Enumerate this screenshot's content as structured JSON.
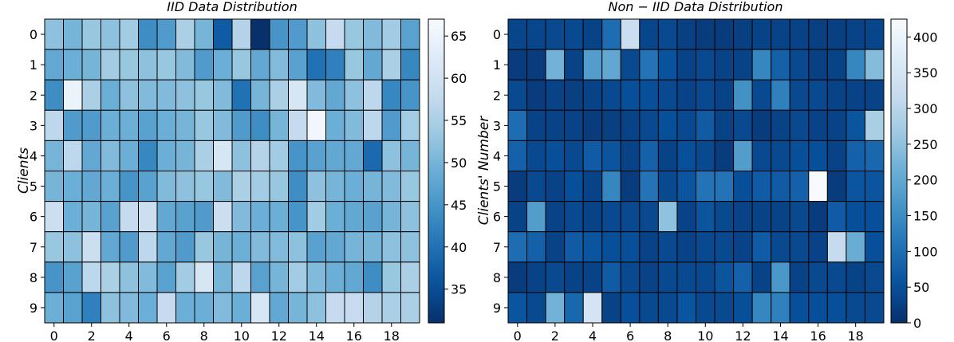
{
  "chart_data": [
    {
      "type": "heatmap",
      "title": "IID Data Distribution",
      "xlabel": "",
      "ylabel": "Clients",
      "colormap": "Blues_r",
      "rows": [
        "0",
        "1",
        "2",
        "3",
        "4",
        "5",
        "6",
        "7",
        "8",
        "9"
      ],
      "columns": [
        "0",
        "1",
        "2",
        "3",
        "4",
        "5",
        "6",
        "7",
        "8",
        "9",
        "10",
        "11",
        "12",
        "13",
        "14",
        "15",
        "16",
        "17",
        "18",
        "19"
      ],
      "x_tick_labels": [
        "0",
        "2",
        "4",
        "6",
        "8",
        "10",
        "12",
        "14",
        "16",
        "18"
      ],
      "y_tick_labels": [
        "0",
        "1",
        "2",
        "3",
        "4",
        "5",
        "6",
        "7",
        "8",
        "9"
      ],
      "colorbar": {
        "min": 31,
        "max": 67,
        "ticks": [
          35,
          40,
          45,
          50,
          55,
          60,
          65
        ]
      },
      "values": [
        [
          52,
          50,
          53,
          52,
          54,
          44,
          46,
          55,
          50,
          37,
          56,
          31,
          45,
          46,
          52,
          58,
          53,
          51,
          54,
          47
        ],
        [
          48,
          49,
          50,
          54,
          53,
          52,
          53,
          51,
          46,
          49,
          53,
          48,
          51,
          47,
          40,
          42,
          53,
          48,
          55,
          43
        ],
        [
          44,
          65,
          55,
          49,
          52,
          51,
          51,
          52,
          53,
          51,
          40,
          50,
          55,
          61,
          51,
          48,
          52,
          57,
          43,
          45
        ],
        [
          57,
          46,
          46,
          49,
          49,
          47,
          49,
          50,
          53,
          51,
          46,
          44,
          50,
          58,
          66,
          49,
          51,
          57,
          46,
          54
        ],
        [
          50,
          57,
          48,
          51,
          49,
          43,
          49,
          50,
          55,
          61,
          52,
          56,
          54,
          45,
          47,
          48,
          48,
          39,
          52,
          50
        ],
        [
          50,
          49,
          48,
          49,
          45,
          47,
          51,
          52,
          53,
          51,
          55,
          54,
          53,
          44,
          52,
          50,
          49,
          50,
          51,
          53
        ],
        [
          59,
          49,
          50,
          47,
          58,
          59,
          48,
          47,
          46,
          59,
          51,
          49,
          49,
          45,
          54,
          49,
          48,
          47,
          50,
          52
        ],
        [
          53,
          52,
          59,
          48,
          46,
          57,
          48,
          46,
          53,
          50,
          49,
          51,
          51,
          52,
          47,
          48,
          50,
          50,
          52,
          52
        ],
        [
          45,
          47,
          57,
          55,
          52,
          51,
          47,
          54,
          61,
          50,
          57,
          47,
          50,
          54,
          51,
          49,
          48,
          44,
          53,
          55
        ],
        [
          49,
          47,
          42,
          52,
          51,
          49,
          58,
          49,
          49,
          51,
          49,
          61,
          48,
          50,
          52,
          58,
          58,
          56,
          55,
          55
        ]
      ]
    },
    {
      "type": "heatmap",
      "title": "Non − IID Data Distribution",
      "xlabel": "",
      "ylabel": "Clients' Number",
      "colormap": "Blues_r",
      "rows": [
        "0",
        "1",
        "2",
        "3",
        "4",
        "5",
        "6",
        "7",
        "8",
        "9"
      ],
      "columns": [
        "0",
        "1",
        "2",
        "3",
        "4",
        "5",
        "6",
        "7",
        "8",
        "9",
        "10",
        "11",
        "12",
        "13",
        "14",
        "15",
        "16",
        "17",
        "18",
        "19"
      ],
      "x_tick_labels": [
        "0",
        "2",
        "4",
        "6",
        "8",
        "10",
        "12",
        "14",
        "16",
        "18"
      ],
      "y_tick_labels": [
        "0",
        "1",
        "2",
        "3",
        "4",
        "5",
        "6",
        "7",
        "8",
        "9"
      ],
      "colorbar": {
        "min": 0,
        "max": 425,
        "ticks": [
          0,
          50,
          100,
          150,
          200,
          250,
          300,
          350,
          400
        ]
      },
      "values": [
        [
          35,
          35,
          40,
          40,
          30,
          100,
          330,
          35,
          40,
          25,
          20,
          20,
          25,
          30,
          30,
          30,
          25,
          25,
          30,
          35
        ],
        [
          20,
          20,
          220,
          30,
          180,
          200,
          40,
          110,
          55,
          30,
          40,
          30,
          30,
          140,
          80,
          40,
          25,
          30,
          140,
          240
        ],
        [
          40,
          20,
          30,
          25,
          30,
          40,
          50,
          50,
          40,
          30,
          40,
          30,
          160,
          40,
          130,
          40,
          40,
          30,
          30,
          30
        ],
        [
          100,
          30,
          30,
          30,
          20,
          25,
          30,
          40,
          50,
          40,
          70,
          30,
          40,
          20,
          30,
          40,
          30,
          30,
          60,
          280
        ],
        [
          80,
          40,
          50,
          40,
          70,
          60,
          30,
          80,
          30,
          50,
          40,
          20,
          180,
          40,
          40,
          50,
          50,
          30,
          80,
          90
        ],
        [
          20,
          40,
          30,
          50,
          30,
          140,
          20,
          110,
          40,
          60,
          110,
          110,
          50,
          70,
          70,
          80,
          425,
          20,
          60,
          60
        ],
        [
          30,
          180,
          30,
          40,
          30,
          40,
          40,
          40,
          250,
          30,
          60,
          40,
          30,
          30,
          30,
          40,
          20,
          70,
          50,
          50
        ],
        [
          100,
          80,
          30,
          70,
          60,
          50,
          50,
          30,
          40,
          30,
          40,
          40,
          30,
          70,
          40,
          40,
          30,
          320,
          210,
          50
        ],
        [
          20,
          30,
          40,
          30,
          30,
          70,
          40,
          30,
          40,
          40,
          40,
          60,
          80,
          30,
          170,
          30,
          40,
          40,
          30,
          40
        ],
        [
          60,
          40,
          220,
          90,
          350,
          30,
          50,
          40,
          40,
          60,
          40,
          40,
          50,
          140,
          130,
          50,
          50,
          50,
          40,
          40
        ]
      ]
    }
  ]
}
